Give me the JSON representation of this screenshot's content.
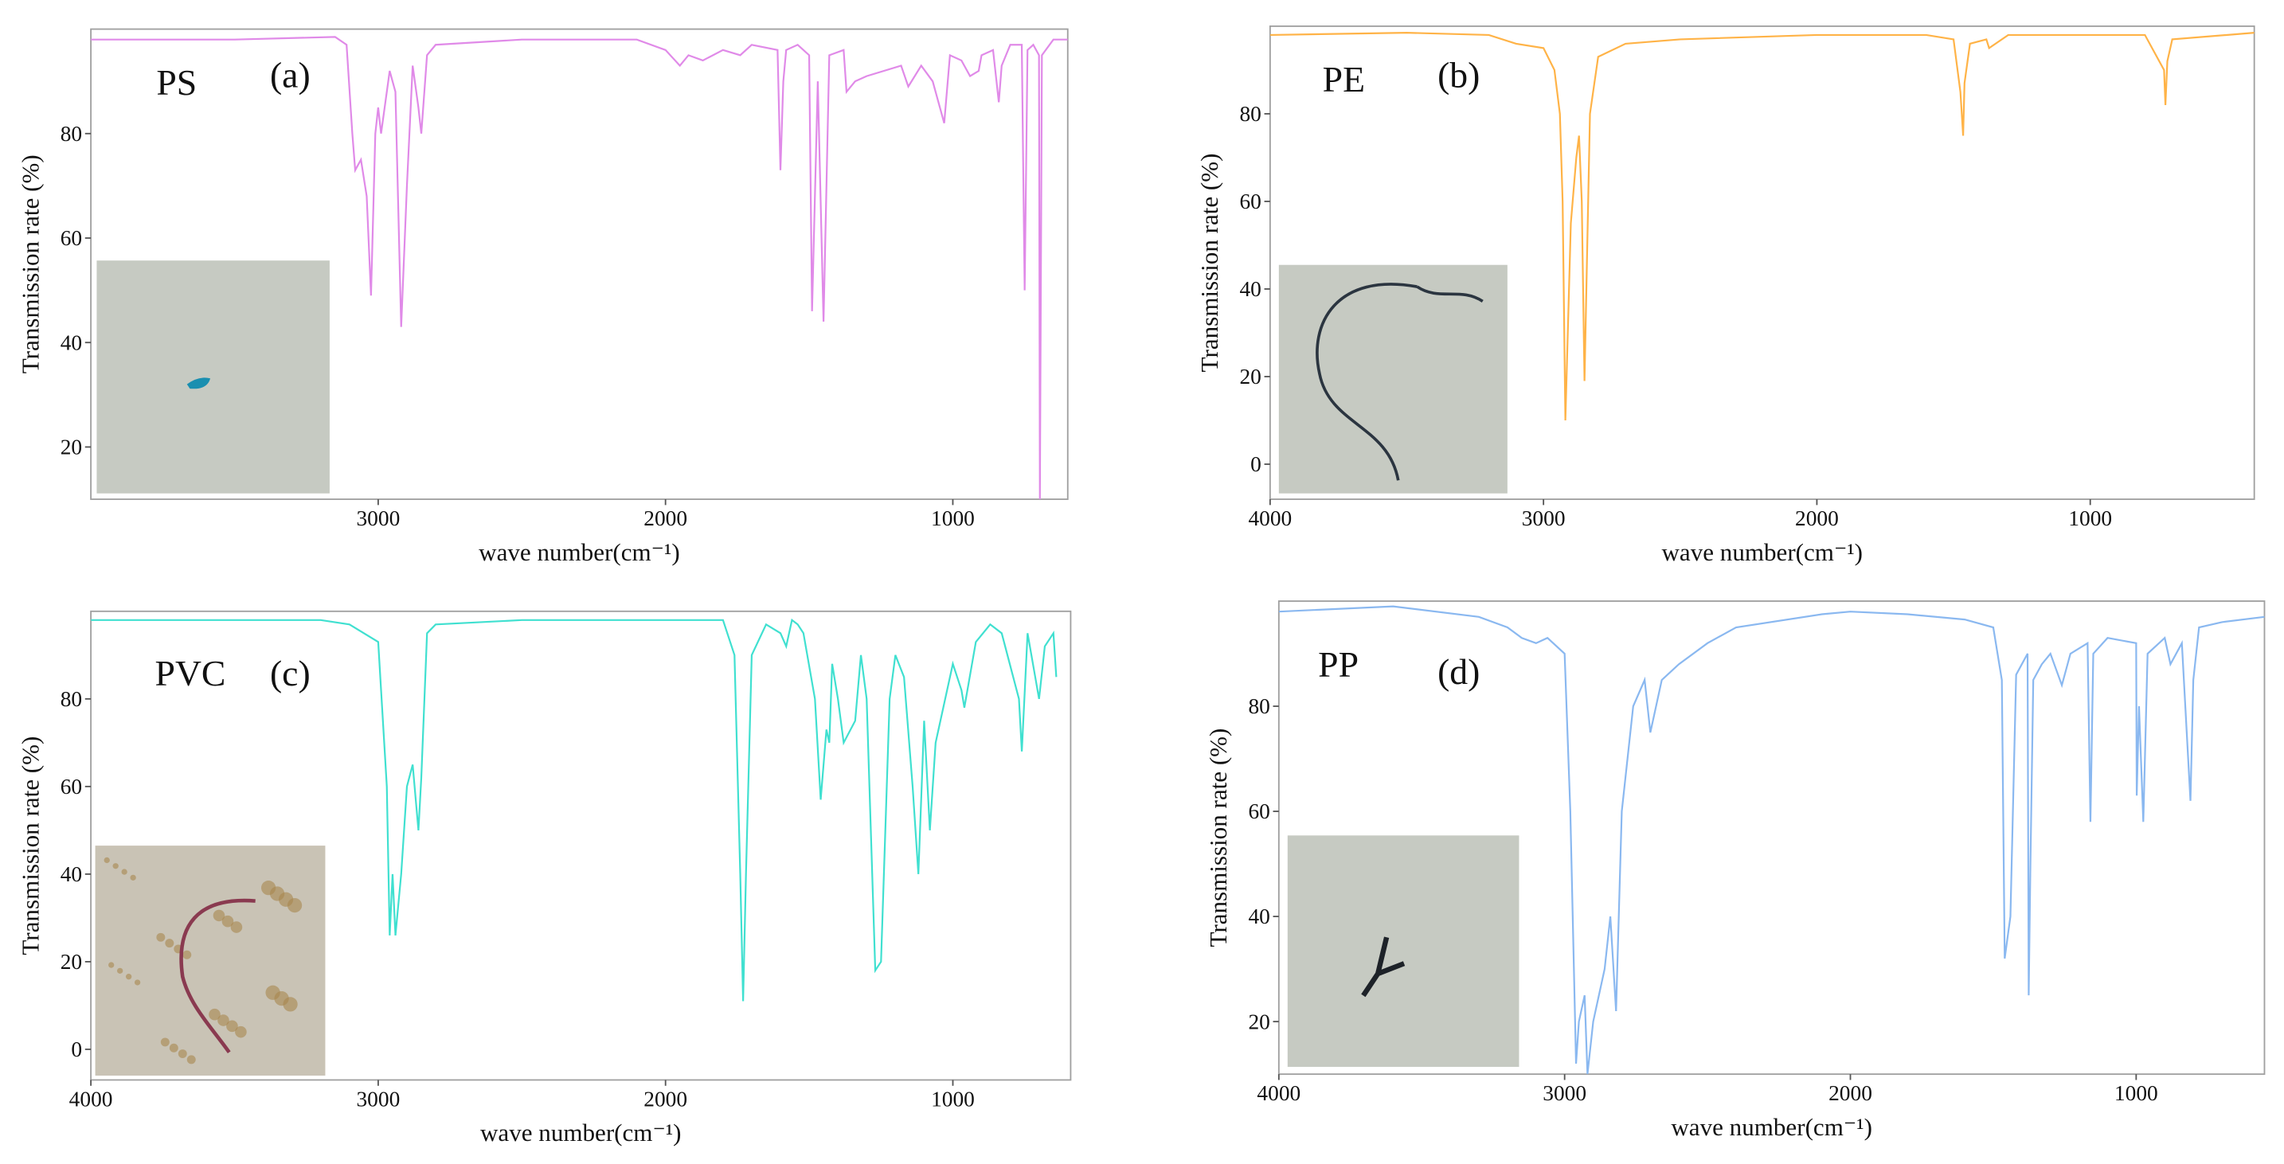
{
  "chart_data": [
    {
      "type": "line",
      "annotations": [
        "PS",
        "(a)"
      ],
      "xlabel": "wave number(cm⁻¹)",
      "ylabel": "Transmission rate (%)",
      "xlim": [
        4000,
        600
      ],
      "xticks": [
        3000,
        2000,
        1000
      ],
      "ylim": [
        10,
        100
      ],
      "yticks": [
        20,
        40,
        60,
        80
      ],
      "series": [
        {
          "color": "#e08ae8",
          "x": [
            4000,
            3500,
            3150,
            3110,
            3090,
            3080,
            3060,
            3040,
            3025,
            3010,
            3000,
            2990,
            2960,
            2940,
            2920,
            2900,
            2880,
            2860,
            2850,
            2830,
            2800,
            2500,
            2100,
            2000,
            1950,
            1920,
            1870,
            1800,
            1740,
            1700,
            1610,
            1600,
            1590,
            1580,
            1540,
            1500,
            1490,
            1470,
            1450,
            1430,
            1380,
            1370,
            1340,
            1300,
            1180,
            1155,
            1110,
            1070,
            1030,
            1010,
            970,
            940,
            910,
            900,
            860,
            840,
            830,
            800,
            760,
            750,
            740,
            720,
            700,
            697,
            690,
            650,
            600
          ],
          "values": [
            98,
            98,
            98.5,
            97,
            80,
            73,
            75,
            68,
            49,
            80,
            85,
            80,
            92,
            88,
            43,
            70,
            93,
            85,
            80,
            95,
            97,
            98,
            98,
            96,
            93,
            95,
            94,
            96,
            95,
            97,
            96,
            73,
            90,
            96,
            97,
            95,
            46,
            90,
            44,
            95,
            96,
            88,
            90,
            91,
            93,
            89,
            93,
            90,
            82,
            95,
            94,
            91,
            92,
            95,
            96,
            86,
            93,
            97,
            97,
            50,
            96,
            97,
            95,
            10,
            95,
            98,
            98
          ]
        }
      ]
    },
    {
      "type": "line",
      "annotations": [
        "PE",
        "(b)"
      ],
      "xlabel": "wave number(cm⁻¹)",
      "ylabel": "Transmission rate (%)",
      "xlim": [
        4000,
        400
      ],
      "xticks": [
        4000,
        3000,
        2000,
        1000
      ],
      "ylim": [
        -8,
        100
      ],
      "yticks": [
        0,
        20,
        40,
        60,
        80
      ],
      "series": [
        {
          "color": "#ffb347",
          "x": [
            4000,
            3500,
            3200,
            3100,
            3000,
            2960,
            2940,
            2930,
            2920,
            2900,
            2880,
            2870,
            2860,
            2850,
            2830,
            2800,
            2700,
            2500,
            2000,
            1600,
            1500,
            1475,
            1470,
            1465,
            1460,
            1440,
            1380,
            1370,
            1300,
            800,
            730,
            725,
            718,
            700,
            400
          ],
          "values": [
            98,
            98.5,
            98,
            96,
            95,
            90,
            80,
            60,
            10,
            55,
            70,
            75,
            60,
            19,
            80,
            93,
            96,
            97,
            98,
            98,
            97,
            85,
            80,
            75,
            87,
            96,
            97,
            95,
            98,
            98,
            90,
            82,
            92,
            97,
            98.5
          ]
        }
      ]
    },
    {
      "type": "line",
      "annotations": [
        "PVC",
        "(c)"
      ],
      "xlabel": "wave number(cm⁻¹)",
      "ylabel": "Transmission rate (%)",
      "xlim": [
        4000,
        590
      ],
      "xticks": [
        4000,
        3000,
        2000,
        1000
      ],
      "ylim": [
        -7,
        100
      ],
      "yticks": [
        0,
        20,
        40,
        60,
        80
      ],
      "series": [
        {
          "color": "#40e0d0",
          "x": [
            4000,
            3200,
            3100,
            3000,
            2970,
            2960,
            2950,
            2940,
            2920,
            2900,
            2880,
            2860,
            2850,
            2830,
            2800,
            2500,
            2000,
            1800,
            1760,
            1740,
            1730,
            1720,
            1700,
            1650,
            1600,
            1580,
            1560,
            1540,
            1520,
            1480,
            1460,
            1440,
            1430,
            1420,
            1400,
            1380,
            1340,
            1320,
            1300,
            1270,
            1250,
            1220,
            1200,
            1170,
            1140,
            1120,
            1100,
            1080,
            1060,
            1000,
            970,
            960,
            920,
            870,
            830,
            770,
            760,
            740,
            700,
            680,
            650,
            640
          ],
          "values": [
            98,
            98,
            97,
            93,
            60,
            26,
            40,
            26,
            40,
            60,
            65,
            50,
            62,
            95,
            97,
            98,
            98,
            98,
            90,
            40,
            11,
            40,
            90,
            97,
            95,
            92,
            98,
            97,
            95,
            80,
            57,
            73,
            70,
            88,
            80,
            70,
            75,
            90,
            80,
            18,
            20,
            80,
            90,
            85,
            60,
            40,
            75,
            50,
            70,
            88,
            82,
            78,
            93,
            97,
            95,
            80,
            68,
            95,
            80,
            92,
            95,
            85
          ]
        }
      ]
    },
    {
      "type": "line",
      "annotations": [
        "PP",
        "(d)"
      ],
      "xlabel": "wave number(cm⁻¹)",
      "ylabel": "Transmission rate (%)",
      "xlim": [
        4000,
        551
      ],
      "xticks": [
        4000,
        3000,
        2000,
        1000
      ],
      "ylim": [
        10,
        100
      ],
      "yticks": [
        20,
        40,
        60,
        80
      ],
      "series": [
        {
          "color": "#8ab8f0",
          "x": [
            4000,
            3600,
            3300,
            3200,
            3150,
            3100,
            3060,
            3000,
            2980,
            2960,
            2950,
            2930,
            2920,
            2900,
            2880,
            2860,
            2840,
            2820,
            2800,
            2760,
            2720,
            2700,
            2660,
            2600,
            2500,
            2400,
            2100,
            2000,
            1800,
            1600,
            1500,
            1470,
            1460,
            1440,
            1420,
            1380,
            1376,
            1370,
            1360,
            1330,
            1300,
            1260,
            1230,
            1170,
            1160,
            1150,
            1100,
            1000,
            998,
            990,
            975,
            960,
            900,
            880,
            840,
            810,
            800,
            780,
            700,
            551
          ],
          "values": [
            98,
            99,
            97,
            95,
            93,
            92,
            93,
            90,
            60,
            12,
            20,
            25,
            10,
            20,
            25,
            30,
            40,
            22,
            60,
            80,
            85,
            75,
            85,
            88,
            92,
            95,
            97.5,
            98,
            97.5,
            96.5,
            95,
            85,
            32,
            40,
            86,
            90,
            25,
            50,
            85,
            88,
            90,
            84,
            90,
            92,
            58,
            90,
            93,
            92,
            63,
            80,
            58,
            90,
            93,
            88,
            92,
            62,
            85,
            95,
            96,
            97
          ]
        }
      ]
    }
  ]
}
